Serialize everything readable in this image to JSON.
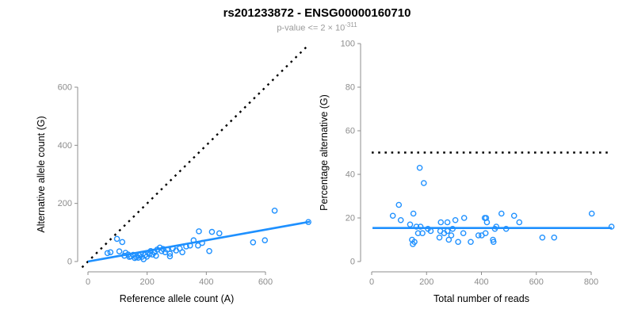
{
  "header": {
    "title": "rs201233872 - ENSG00000160710",
    "subtitle_prefix": "p-value <= 2 × 10",
    "subtitle_exponent": "-311"
  },
  "colors": {
    "accent_blue": "#1E90FF",
    "axis_gray": "#8C8C8C",
    "tick_label_gray": "#8C8C8C",
    "axis_title_black": "#000000",
    "dotted_line_black": "#000000"
  },
  "chart_data": [
    {
      "type": "scatter",
      "panel": "left",
      "xlabel": "Reference allele count (A)",
      "ylabel": "Alternative allele count (G)",
      "x_ticks": [
        0,
        200,
        400,
        600
      ],
      "y_ticks": [
        0,
        200,
        400,
        600
      ],
      "xlim": [
        -35,
        785
      ],
      "ylim": [
        -30,
        745
      ],
      "grid": false,
      "identity_line": {
        "style": "dotted",
        "slope": 1,
        "intercept": 0
      },
      "regression_line": {
        "x1": 0,
        "y1": 0,
        "x2": 750,
        "y2": 137
      },
      "points": [
        [
          66,
          29
        ],
        [
          76,
          32
        ],
        [
          98,
          78
        ],
        [
          106,
          35
        ],
        [
          116,
          67
        ],
        [
          123,
          20
        ],
        [
          127,
          30
        ],
        [
          136,
          24
        ],
        [
          140,
          16
        ],
        [
          145,
          18
        ],
        [
          153,
          23
        ],
        [
          158,
          12
        ],
        [
          163,
          15
        ],
        [
          170,
          13
        ],
        [
          173,
          21
        ],
        [
          178,
          25
        ],
        [
          182,
          16
        ],
        [
          188,
          8
        ],
        [
          194,
          23
        ],
        [
          199,
          17
        ],
        [
          203,
          30
        ],
        [
          208,
          25
        ],
        [
          212,
          36
        ],
        [
          218,
          24
        ],
        [
          225,
          32
        ],
        [
          230,
          20
        ],
        [
          234,
          41
        ],
        [
          243,
          48
        ],
        [
          249,
          36
        ],
        [
          254,
          43
        ],
        [
          261,
          32
        ],
        [
          268,
          41
        ],
        [
          277,
          27
        ],
        [
          277,
          18
        ],
        [
          287,
          45
        ],
        [
          298,
          38
        ],
        [
          310,
          45
        ],
        [
          319,
          32
        ],
        [
          332,
          52
        ],
        [
          345,
          55
        ],
        [
          357,
          73
        ],
        [
          372,
          55
        ],
        [
          375,
          104
        ],
        [
          386,
          64
        ],
        [
          410,
          36
        ],
        [
          419,
          102
        ],
        [
          444,
          97
        ],
        [
          558,
          66
        ],
        [
          598,
          73
        ],
        [
          631,
          175
        ],
        [
          745,
          136
        ]
      ]
    },
    {
      "type": "scatter",
      "panel": "right",
      "xlabel": "Total number of reads",
      "ylabel": "Percentage alternative (G)",
      "x_ticks": [
        0,
        200,
        400,
        600,
        800
      ],
      "y_ticks": [
        0,
        20,
        40,
        60,
        80,
        100
      ],
      "xlim": [
        -35,
        915
      ],
      "ylim": [
        0,
        100
      ],
      "grid": false,
      "reference_line": {
        "style": "dotted",
        "y": 50,
        "x_start": 0,
        "x_end": 860
      },
      "regression_line": {
        "y": 15.4,
        "x_start": 3,
        "x_end": 875
      },
      "points": [
        [
          77,
          21
        ],
        [
          99,
          26
        ],
        [
          106,
          19
        ],
        [
          140,
          17
        ],
        [
          147,
          10
        ],
        [
          150,
          8
        ],
        [
          152,
          22
        ],
        [
          156,
          9
        ],
        [
          163,
          16
        ],
        [
          169,
          13
        ],
        [
          175,
          43
        ],
        [
          178,
          16
        ],
        [
          185,
          13
        ],
        [
          190,
          36
        ],
        [
          205,
          15
        ],
        [
          215,
          14
        ],
        [
          247,
          11
        ],
        [
          250,
          14
        ],
        [
          252,
          18
        ],
        [
          264,
          13
        ],
        [
          276,
          18
        ],
        [
          276,
          14
        ],
        [
          281,
          10
        ],
        [
          290,
          12
        ],
        [
          295,
          15
        ],
        [
          305,
          19
        ],
        [
          315,
          9
        ],
        [
          334,
          13
        ],
        [
          337,
          20
        ],
        [
          361,
          9
        ],
        [
          389,
          12
        ],
        [
          401,
          12
        ],
        [
          412,
          20
        ],
        [
          415,
          13
        ],
        [
          417,
          20
        ],
        [
          420,
          18
        ],
        [
          442,
          10
        ],
        [
          444,
          9
        ],
        [
          449,
          15
        ],
        [
          454,
          16
        ],
        [
          473,
          22
        ],
        [
          490,
          15
        ],
        [
          519,
          21
        ],
        [
          538,
          18
        ],
        [
          622,
          11
        ],
        [
          665,
          11
        ],
        [
          802,
          22
        ],
        [
          874,
          16
        ]
      ]
    }
  ]
}
